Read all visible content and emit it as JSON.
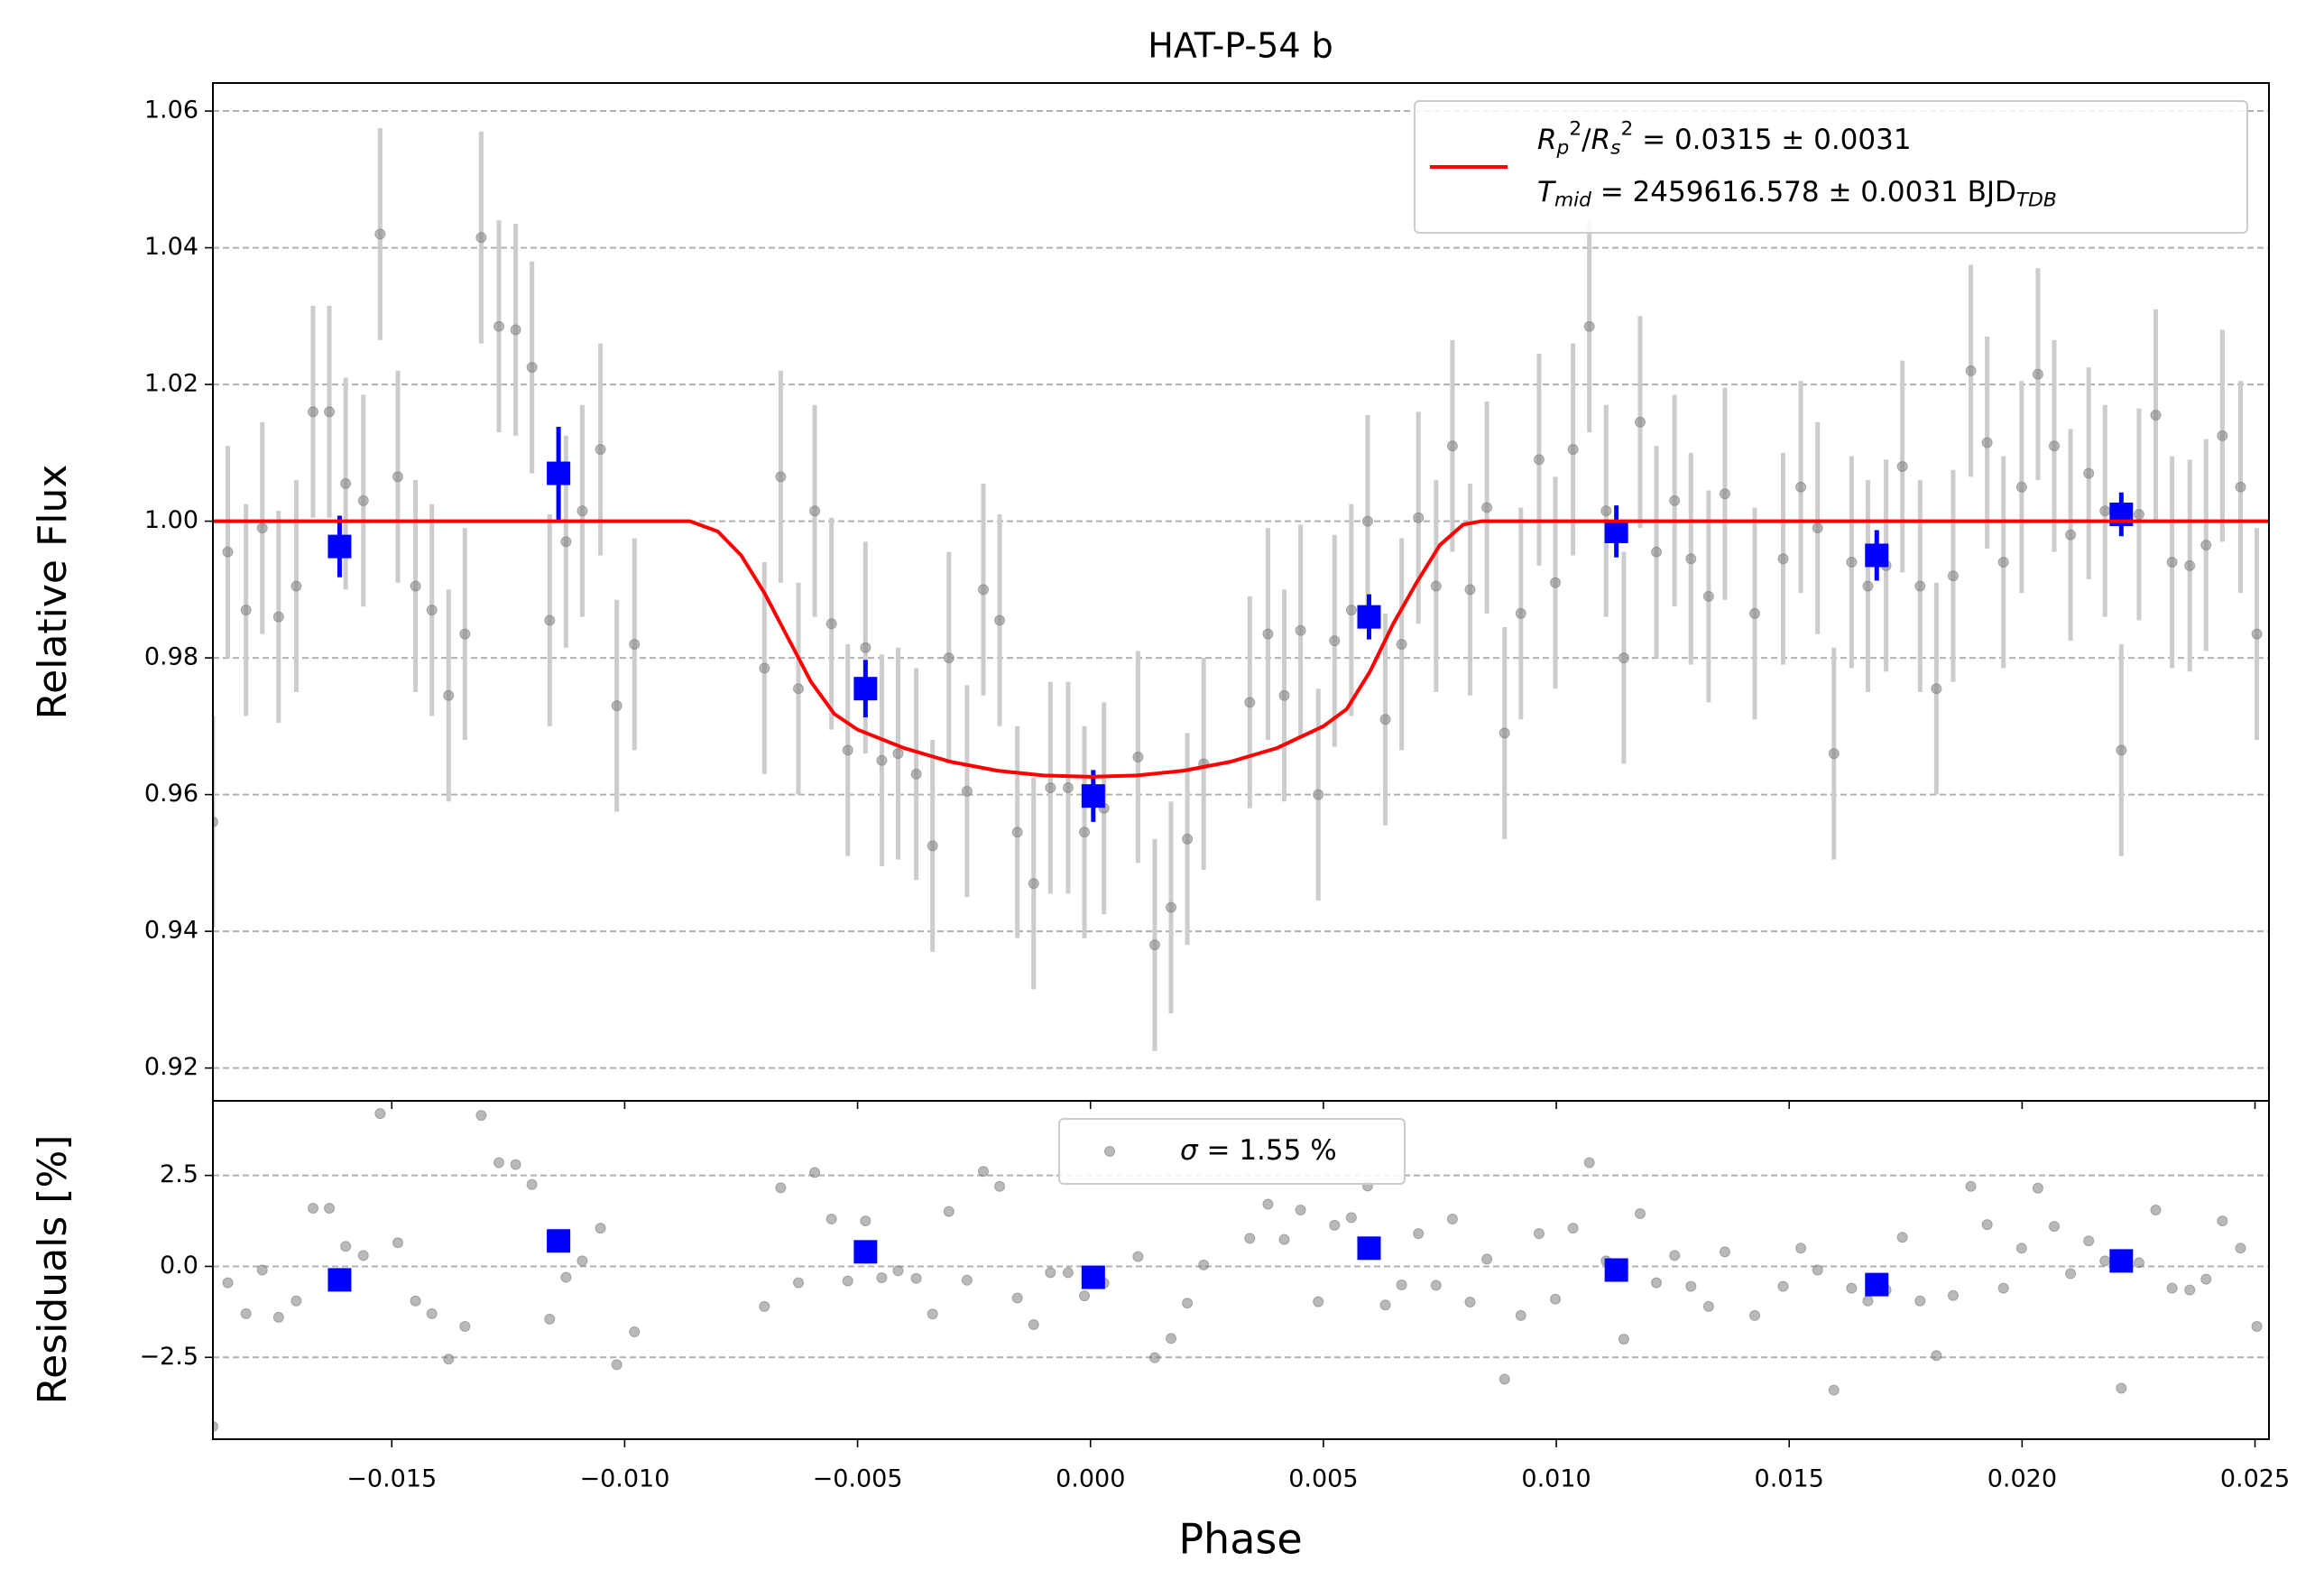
{
  "chart_data": [
    {
      "type": "scatter",
      "title": "HAT-P-54 b",
      "ylabel": "Relative Flux",
      "xlim": [
        -0.01884,
        0.0253
      ],
      "ylim": [
        0.9152,
        1.0641
      ],
      "yticks": [
        0.92,
        0.94,
        0.96,
        0.98,
        {
          "value": 1,
          "label": "1.00"
        },
        1.02,
        1.04,
        1.06
      ],
      "grid": true,
      "legend": "upper right",
      "series": [
        {
          "type": "scatter",
          "color": "#808080",
          "error_color": "#cccccc",
          "error": 0.0155,
          "x": [
            -0.01884,
            -0.01852,
            -0.01813,
            -0.01778,
            -0.01743,
            -0.01705,
            -0.01669,
            -0.01634,
            -0.01599,
            -0.01561,
            -0.01525,
            -0.01487,
            -0.01449,
            -0.01414,
            -0.01378,
            -0.01343,
            -0.01308,
            -0.0127,
            -0.01234,
            -0.01199,
            -0.01161,
            -0.01126,
            -0.01091,
            -0.01052,
            -0.01017,
            -0.00979,
            -0.007,
            -0.00665,
            -0.00627,
            -0.00592,
            -0.00556,
            -0.00521,
            -0.00483,
            -0.00448,
            -0.00413,
            -0.00374,
            -0.00339,
            -0.00304,
            -0.00265,
            -0.0023,
            -0.00195,
            -0.00157,
            -0.00122,
            -0.00086,
            -0.00048,
            -0.00013,
            0.00029,
            0.00102,
            0.00138,
            0.00173,
            0.00208,
            0.00243,
            0.00342,
            0.00381,
            0.00416,
            0.00451,
            0.00489,
            0.00524,
            0.0056,
            0.00595,
            0.00633,
            0.00668,
            0.00704,
            0.00742,
            0.00777,
            0.00815,
            0.00851,
            0.00889,
            0.00924,
            0.00963,
            0.00998,
            0.01036,
            0.01071,
            0.01107,
            0.01145,
            0.0118,
            0.01215,
            0.01254,
            0.01289,
            0.01327,
            0.01362,
            0.01426,
            0.01487,
            0.01525,
            0.01561,
            0.01596,
            0.01634,
            0.01669,
            0.01708,
            0.01743,
            0.01781,
            0.01816,
            0.01852,
            0.0189,
            0.01925,
            0.0196,
            0.01999,
            0.02034,
            0.02069,
            0.02104,
            0.02143,
            0.02178,
            0.02213,
            0.02251,
            0.02287,
            0.02322,
            0.0236,
            0.02395,
            0.0243,
            0.02469,
            0.02504
          ],
          "y": [
            0.956,
            0.9955,
            0.987,
            0.999,
            0.986,
            0.9905,
            1.016,
            1.016,
            1.0055,
            1.003,
            1.042,
            1.0065,
            0.9905,
            0.987,
            0.9745,
            0.9835,
            1.0415,
            1.0285,
            1.028,
            1.0225,
            0.9855,
            0.997,
            1.0015,
            1.0105,
            0.973,
            0.982,
            0.9785,
            1.0065,
            0.9755,
            1.0015,
            0.985,
            0.9665,
            0.9815,
            0.965,
            0.966,
            0.963,
            0.9525,
            0.98,
            0.9605,
            0.99,
            0.9855,
            0.9545,
            0.947,
            0.961,
            0.961,
            0.9545,
            0.958,
            0.9655,
            0.938,
            0.9435,
            0.9535,
            0.9645,
            0.9735,
            0.9835,
            0.9745,
            0.984,
            0.96,
            0.9825,
            0.987,
            1.0,
            0.971,
            0.982,
            1.0005,
            0.9905,
            1.011,
            0.99,
            1.002,
            0.969,
            0.9865,
            1.009,
            0.991,
            1.0105,
            1.0285,
            1.0015,
            0.98,
            1.0145,
            0.9955,
            1.003,
            0.9945,
            0.989,
            1.004,
            0.9865,
            0.9945,
            1.005,
            0.999,
            0.966,
            0.994,
            0.9905,
            0.9935,
            1.008,
            0.9905,
            0.9755,
            0.992,
            1.022,
            1.0115,
            0.994,
            1.005,
            1.0215,
            1.011,
            0.998,
            1.007,
            1.0015,
            0.9665,
            1.001,
            1.0155,
            0.994,
            0.9935,
            0.9965,
            1.0125,
            1.005,
            0.9835
          ]
        },
        {
          "type": "binned",
          "color": "#0000ff",
          "x": [
            -0.01612,
            -0.01142,
            -0.00483,
            6e-05,
            0.00598,
            0.01129,
            0.01688,
            0.02213
          ],
          "y": [
            0.9963,
            1.007,
            0.9755,
            0.9598,
            0.986,
            0.9985,
            0.995,
            1.001
          ],
          "errors": [
            0.0045,
            0.0068,
            0.0042,
            0.0038,
            0.0033,
            0.0038,
            0.0037,
            0.0032
          ]
        },
        {
          "type": "line",
          "color": "#ff0000",
          "name": "$R_p^2/R_s^2$ = 0.0315 ± 0.0031\n$T_{mid}$ = 2459616.578 ± 0.0031 BJD$_{TDB}$",
          "x": [
            -0.01884,
            -0.0086,
            -0.008,
            -0.0075,
            -0.007,
            -0.0065,
            -0.006,
            -0.0055,
            -0.005,
            -0.004,
            -0.003,
            -0.002,
            -0.001,
            0,
            0.001,
            0.002,
            0.003,
            0.004,
            0.005,
            0.0055,
            0.006,
            0.0065,
            0.007,
            0.0075,
            0.008,
            0.0084,
            0.0253
          ],
          "y": [
            1,
            1,
            0.9985,
            0.995,
            0.9895,
            0.983,
            0.9765,
            0.9718,
            0.9695,
            0.9668,
            0.9648,
            0.9635,
            0.9628,
            0.9626,
            0.9628,
            0.9635,
            0.9648,
            0.9668,
            0.97,
            0.9725,
            0.978,
            0.985,
            0.991,
            0.9965,
            0.9995,
            1,
            1
          ]
        }
      ]
    },
    {
      "type": "scatter",
      "xlabel": "Phase",
      "ylabel": "Residuals [%]",
      "xlim": [
        -0.01884,
        0.0253
      ],
      "ylim": [
        -4.75,
        4.55
      ],
      "xticks": [
        {
          "value": -0.015,
          "label": "−0.015"
        },
        {
          "value": -0.01,
          "label": "−0.010"
        },
        {
          "value": -0.005,
          "label": "−0.005"
        },
        {
          "value": 0,
          "label": "0.000"
        },
        0.005,
        {
          "value": 0.01,
          "label": "0.010"
        },
        0.015,
        {
          "value": 0.02,
          "label": "0.020"
        },
        0.025
      ],
      "yticks": [
        {
          "value": -2.5,
          "label": "−2.5"
        },
        {
          "value": 0,
          "label": "0.0"
        },
        2.5
      ],
      "grid": true,
      "legend": "upper center",
      "series": [
        {
          "type": "scatter",
          "color": "#808080",
          "name": "$\\sigma$ = 1.55 %",
          "x": [
            -0.01884,
            -0.01852,
            -0.01813,
            -0.01778,
            -0.01743,
            -0.01705,
            -0.01669,
            -0.01634,
            -0.01599,
            -0.01561,
            -0.01525,
            -0.01487,
            -0.01449,
            -0.01414,
            -0.01378,
            -0.01343,
            -0.01308,
            -0.0127,
            -0.01234,
            -0.01199,
            -0.01161,
            -0.01126,
            -0.01091,
            -0.01052,
            -0.01017,
            -0.00979,
            -0.007,
            -0.00665,
            -0.00627,
            -0.00592,
            -0.00556,
            -0.00521,
            -0.00483,
            -0.00448,
            -0.00413,
            -0.00374,
            -0.00339,
            -0.00304,
            -0.00265,
            -0.0023,
            -0.00195,
            -0.00157,
            -0.00122,
            -0.00086,
            -0.00048,
            -0.00013,
            0.00029,
            0.00102,
            0.00138,
            0.00173,
            0.00208,
            0.00243,
            0.00342,
            0.00381,
            0.00416,
            0.00451,
            0.00489,
            0.00524,
            0.0056,
            0.00595,
            0.00633,
            0.00668,
            0.00704,
            0.00742,
            0.00777,
            0.00815,
            0.00851,
            0.00889,
            0.00924,
            0.00963,
            0.00998,
            0.01036,
            0.01071,
            0.01107,
            0.01145,
            0.0118,
            0.01215,
            0.01254,
            0.01289,
            0.01327,
            0.01362,
            0.01426,
            0.01487,
            0.01525,
            0.01561,
            0.01596,
            0.01634,
            0.01669,
            0.01708,
            0.01743,
            0.01781,
            0.01816,
            0.01852,
            0.0189,
            0.01925,
            0.0196,
            0.01999,
            0.02034,
            0.02069,
            0.02104,
            0.02143,
            0.02178,
            0.02213,
            0.02251,
            0.02287,
            0.02322,
            0.0236,
            0.02395,
            0.0243,
            0.02469,
            0.02504
          ],
          "y": [
            -4.4,
            -0.45,
            -1.3,
            -0.1,
            -1.4,
            -0.95,
            1.6,
            1.6,
            0.55,
            0.3,
            4.2,
            0.65,
            -0.95,
            -1.3,
            -2.55,
            -1.65,
            4.15,
            2.85,
            2.8,
            2.25,
            -1.45,
            -0.3,
            0.15,
            1.05,
            -2.7,
            -1.8,
            -1.1,
            2.16,
            -0.45,
            2.58,
            1.3,
            -0.4,
            1.25,
            -0.31,
            -0.12,
            -0.33,
            -1.31,
            1.51,
            -0.38,
            2.61,
            2.2,
            -0.87,
            -1.6,
            -0.17,
            -0.17,
            -0.81,
            -0.46,
            0.27,
            -2.51,
            -1.98,
            -1.01,
            0.04,
            0.77,
            1.71,
            0.74,
            1.55,
            -0.97,
            1.13,
            1.34,
            2.21,
            -1.06,
            -0.51,
            0.9,
            -0.52,
            1.3,
            -0.98,
            0.2,
            -3.1,
            -1.35,
            0.9,
            -0.9,
            1.05,
            2.85,
            0.15,
            -2.0,
            1.45,
            -0.45,
            0.3,
            -0.55,
            -1.1,
            0.4,
            -1.35,
            -0.55,
            0.5,
            -0.1,
            -3.4,
            -0.6,
            -0.95,
            -0.65,
            0.8,
            -0.95,
            -2.45,
            -0.8,
            2.2,
            1.15,
            -0.6,
            0.5,
            2.15,
            1.1,
            -0.2,
            0.7,
            0.15,
            -3.35,
            0.1,
            1.55,
            -0.6,
            -0.65,
            -0.35,
            1.25,
            0.5,
            -1.65
          ]
        },
        {
          "type": "binned",
          "color": "#0000ff",
          "x": [
            -0.01612,
            -0.01142,
            -0.00483,
            6e-05,
            0.00598,
            0.01129,
            0.01688,
            0.02213
          ],
          "y": [
            -0.37,
            0.7,
            0.4,
            -0.3,
            0.5,
            -0.1,
            -0.5,
            0.15
          ]
        }
      ]
    }
  ]
}
